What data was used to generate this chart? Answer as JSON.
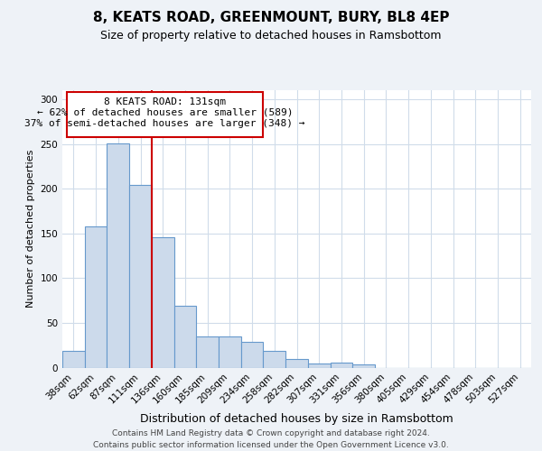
{
  "title": "8, KEATS ROAD, GREENMOUNT, BURY, BL8 4EP",
  "subtitle": "Size of property relative to detached houses in Ramsbottom",
  "xlabel": "Distribution of detached houses by size in Ramsbottom",
  "ylabel": "Number of detached properties",
  "footer_line1": "Contains HM Land Registry data © Crown copyright and database right 2024.",
  "footer_line2": "Contains public sector information licensed under the Open Government Licence v3.0.",
  "bar_color": "#ccdaeb",
  "bar_edge_color": "#6699cc",
  "grid_color": "#d0dcea",
  "annotation_box_color": "#cc0000",
  "vline_color": "#cc0000",
  "annotation_title": "8 KEATS ROAD: 131sqm",
  "annotation_line2": "← 62% of detached houses are smaller (589)",
  "annotation_line3": "37% of semi-detached houses are larger (348) →",
  "bin_labels": [
    "38sqm",
    "62sqm",
    "87sqm",
    "111sqm",
    "136sqm",
    "160sqm",
    "185sqm",
    "209sqm",
    "234sqm",
    "258sqm",
    "282sqm",
    "307sqm",
    "331sqm",
    "356sqm",
    "380sqm",
    "405sqm",
    "429sqm",
    "454sqm",
    "478sqm",
    "503sqm",
    "527sqm"
  ],
  "bar_heights": [
    19,
    158,
    251,
    204,
    146,
    69,
    35,
    35,
    29,
    19,
    10,
    5,
    6,
    4,
    0,
    0,
    0,
    0,
    0,
    0,
    0
  ],
  "vline_position": 3.5,
  "ylim": [
    0,
    310
  ],
  "yticks": [
    0,
    50,
    100,
    150,
    200,
    250,
    300
  ],
  "background_color": "#eef2f7",
  "plot_bg_color": "#ffffff",
  "title_fontsize": 11,
  "subtitle_fontsize": 9,
  "xlabel_fontsize": 9,
  "ylabel_fontsize": 8,
  "tick_fontsize": 7.5,
  "footer_fontsize": 6.5,
  "annot_fontsize": 8
}
